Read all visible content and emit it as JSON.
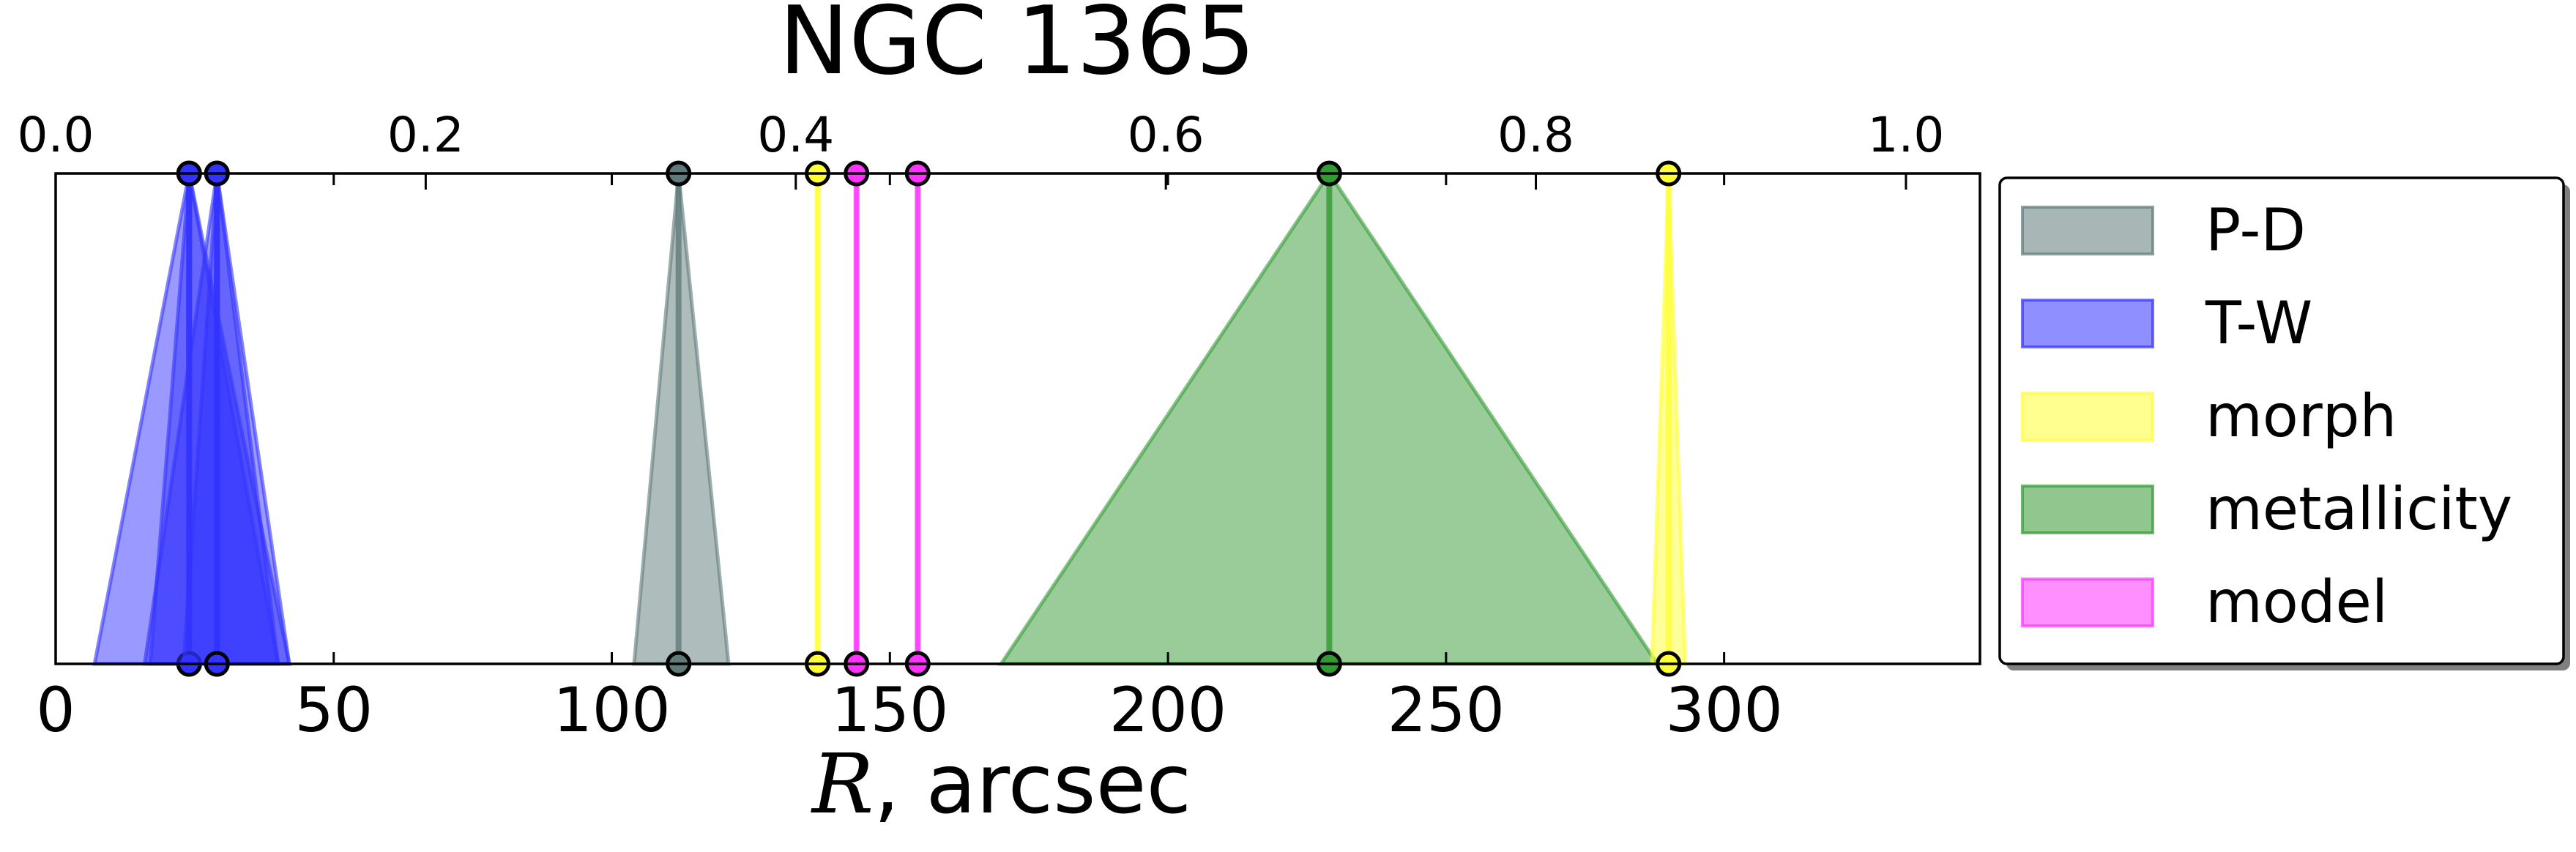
{
  "chart_data": {
    "type": "area",
    "title": "NGC 1365",
    "xlabel_italic": "R",
    "xlabel_rest": ", arcsec",
    "xlim": [
      0,
      346
    ],
    "x_ticks": [
      0,
      50,
      100,
      150,
      200,
      250,
      300
    ],
    "x_tick_labels": [
      "0",
      "50",
      "100",
      "150",
      "200",
      "250",
      "300"
    ],
    "top_xlim": [
      0,
      1.04
    ],
    "top_ticks": [
      0.0,
      0.2,
      0.4,
      0.6,
      0.8,
      1.0
    ],
    "top_tick_labels": [
      "0.0",
      "0.2",
      "0.4",
      "0.6",
      "0.8",
      "1.0"
    ],
    "grid": false,
    "legend_position": "right",
    "legend": [
      {
        "label": "P-D",
        "color": "#607a7a"
      },
      {
        "label": "T-W",
        "color": "#3333ff"
      },
      {
        "label": "morph",
        "color": "#ffff33"
      },
      {
        "label": "metallicity",
        "color": "#339933"
      },
      {
        "label": "model",
        "color": "#ff33ff"
      }
    ],
    "series": [
      {
        "legend_label": "T-W",
        "color": "#3333ff",
        "center": 24,
        "lo": 7,
        "hi": 42
      },
      {
        "legend_label": "T-W",
        "color": "#3333ff",
        "center": 24,
        "lo": 17,
        "hi": 40
      },
      {
        "legend_label": "T-W",
        "color": "#3333ff",
        "center": 29,
        "lo": 16,
        "hi": 42
      },
      {
        "legend_label": "T-W",
        "color": "#3333ff",
        "center": 29,
        "lo": 23,
        "hi": 40
      },
      {
        "legend_label": "P-D",
        "color": "#607a7a",
        "center": 112,
        "lo": 104,
        "hi": 121
      },
      {
        "legend_label": "morph",
        "color": "#ffff33",
        "center": 137,
        "lo": 137,
        "hi": 137
      },
      {
        "legend_label": "model",
        "color": "#ff33ff",
        "center": 144,
        "lo": 144,
        "hi": 144
      },
      {
        "legend_label": "model",
        "color": "#ff33ff",
        "center": 155,
        "lo": 155,
        "hi": 155
      },
      {
        "legend_label": "metallicity",
        "color": "#339933",
        "center": 229,
        "lo": 170,
        "hi": 288
      },
      {
        "legend_label": "morph",
        "color": "#ffff33",
        "center": 290,
        "lo": 287,
        "hi": 293
      }
    ]
  }
}
